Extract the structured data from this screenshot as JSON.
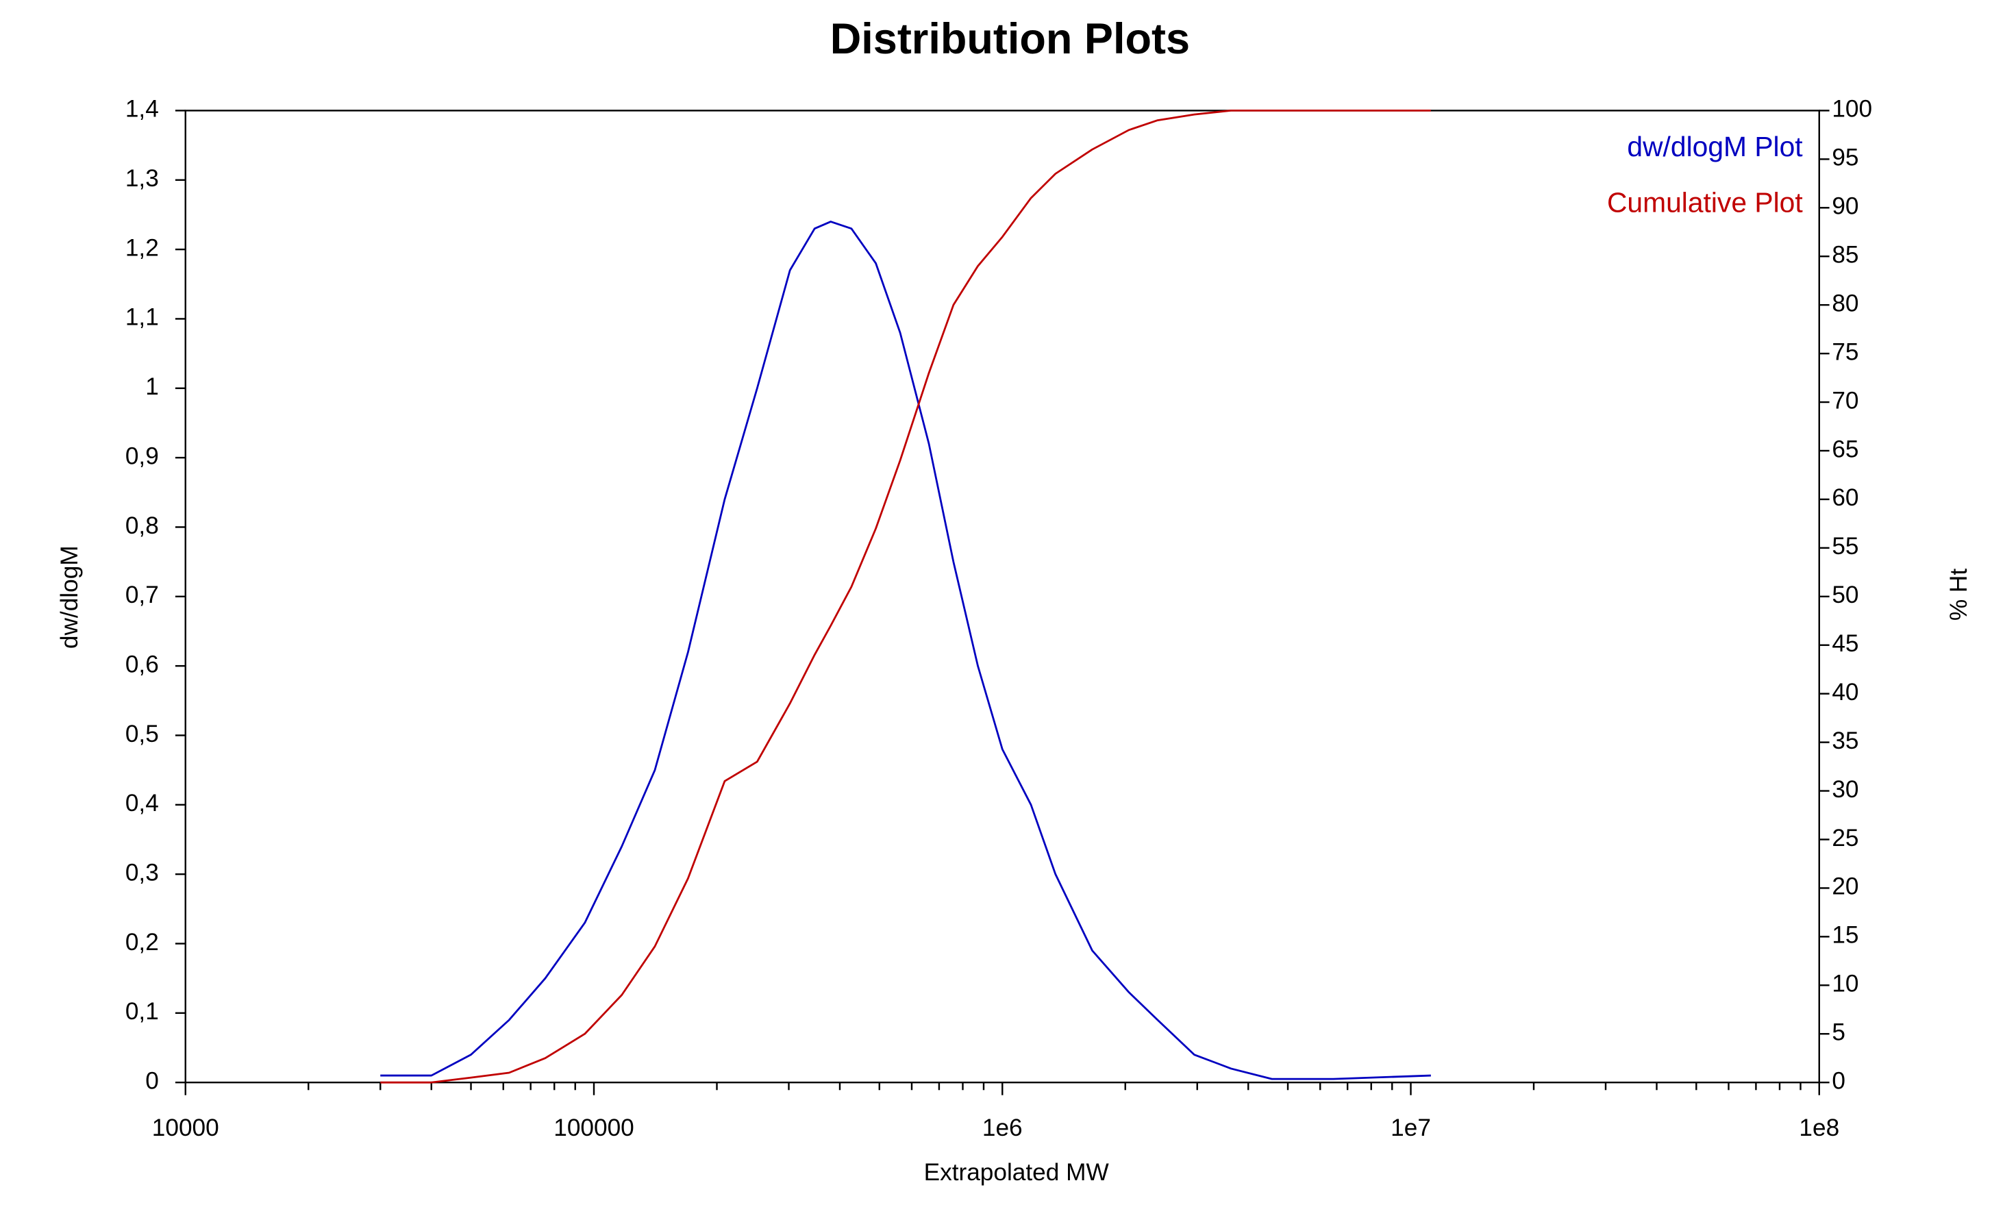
{
  "chart_data": {
    "type": "line",
    "title": "Distribution Plots",
    "xlabel": "Extrapolated MW",
    "ylabel": "dw/dlogM",
    "y2label": "% Ht",
    "xscale": "log",
    "legend": "upper right",
    "xlim": [
      10000,
      100000000
    ],
    "xticks": [
      10000,
      100000,
      {
        "value": 1000000,
        "label": "1e6"
      },
      {
        "value": 10000000,
        "label": "1e7"
      },
      {
        "value": 100000000,
        "label": "1e8"
      }
    ],
    "xminorticks": [
      20000,
      30000,
      40000,
      50000,
      60000,
      70000,
      80000,
      90000,
      200000,
      300000,
      400000,
      500000,
      600000,
      700000,
      800000,
      900000,
      2000000,
      3000000,
      4000000,
      5000000,
      6000000,
      7000000,
      8000000,
      9000000,
      20000000,
      30000000,
      40000000,
      50000000,
      60000000,
      70000000,
      80000000,
      90000000
    ],
    "ylim": [
      0,
      1.4
    ],
    "yticks": [
      0,
      {
        "value": 0.1,
        "label": "0,1"
      },
      {
        "value": 0.2,
        "label": "0,2"
      },
      {
        "value": 0.3,
        "label": "0,3"
      },
      {
        "value": 0.4,
        "label": "0,4"
      },
      {
        "value": 0.5,
        "label": "0,5"
      },
      {
        "value": 0.6,
        "label": "0,6"
      },
      {
        "value": 0.7,
        "label": "0,7"
      },
      {
        "value": 0.8,
        "label": "0,8"
      },
      {
        "value": 0.9,
        "label": "0,9"
      },
      1,
      {
        "value": 1.1,
        "label": "1,1"
      },
      {
        "value": 1.2,
        "label": "1,2"
      },
      {
        "value": 1.3,
        "label": "1,3"
      },
      {
        "value": 1.4,
        "label": "1,4"
      }
    ],
    "y2lim": [
      0,
      100
    ],
    "y2ticks": [
      0,
      5,
      10,
      15,
      20,
      25,
      30,
      35,
      40,
      45,
      50,
      55,
      60,
      65,
      70,
      75,
      80,
      85,
      90,
      95,
      100
    ],
    "x": [
      30000,
      40000,
      50000,
      62000,
      76000,
      95000,
      117000,
      141000,
      170000,
      209000,
      251000,
      302000,
      347000,
      380000,
      427000,
      490000,
      562000,
      661000,
      759000,
      871000,
      1000000,
      1175000,
      1349000,
      1660000,
      2040000,
      2400000,
      2950000,
      3630000,
      4570000,
      6460000,
      11200000
    ],
    "series": [
      {
        "name": "dw/dlogM Plot",
        "color": "#0000c0",
        "values": [
          0.01,
          0.01,
          0.04,
          0.09,
          0.15,
          0.23,
          0.34,
          0.45,
          0.62,
          0.84,
          1.0,
          1.17,
          1.23,
          1.24,
          1.23,
          1.18,
          1.08,
          0.92,
          0.75,
          0.6,
          0.48,
          0.4,
          0.3,
          0.19,
          0.13,
          0.09,
          0.04,
          0.02,
          0.005,
          0.005,
          0.01
        ]
      },
      {
        "name": "Cumulative Plot",
        "color": "#c00000",
        "axis": "y2",
        "values": [
          0,
          0,
          0.5,
          1,
          2.5,
          5,
          9,
          14,
          21,
          31,
          33,
          39,
          44,
          47,
          51,
          57,
          64,
          73,
          80,
          84,
          87,
          91,
          93.5,
          96,
          98,
          99,
          99.6,
          100,
          100,
          100,
          100
        ]
      }
    ]
  }
}
